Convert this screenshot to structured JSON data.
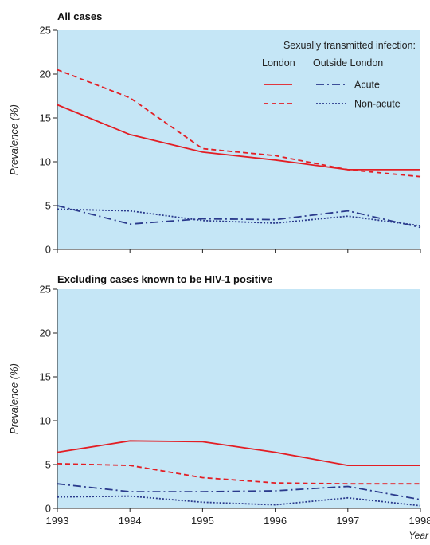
{
  "chart_data": [
    {
      "type": "line",
      "title": "All cases",
      "ylabel": "Prevalence (%)",
      "xlabel": "",
      "x": [
        1993,
        1994,
        1995,
        1996,
        1997,
        1998
      ],
      "ylim": [
        0,
        25
      ],
      "yticks": [
        0,
        5,
        10,
        15,
        20,
        25
      ],
      "grid": false,
      "legend": {
        "title": "Sexually transmitted infection:",
        "col1": "London",
        "col2": "Outside London",
        "rows": [
          "Acute",
          "Non-acute"
        ],
        "placement": "top-right"
      },
      "series": [
        {
          "name": "London acute",
          "color": "#e31e24",
          "dash": "solid",
          "values": [
            16.5,
            13.1,
            11.1,
            10.2,
            9.1,
            9.1
          ]
        },
        {
          "name": "London non-acute",
          "color": "#e31e24",
          "dash": "dashed",
          "values": [
            20.5,
            17.3,
            11.5,
            10.7,
            9.1,
            8.3
          ]
        },
        {
          "name": "Outside London acute",
          "color": "#2a3a8c",
          "dash": "dashdot",
          "values": [
            5.0,
            2.9,
            3.5,
            3.4,
            4.4,
            2.5
          ]
        },
        {
          "name": "Outside London non-acute",
          "color": "#2a3a8c",
          "dash": "dotted",
          "values": [
            4.6,
            4.4,
            3.3,
            3.0,
            3.8,
            2.7
          ]
        }
      ]
    },
    {
      "type": "line",
      "title": "Excluding cases known to be HIV-1 positive",
      "ylabel": "Prevalence (%)",
      "xlabel": "Year",
      "x": [
        1993,
        1994,
        1995,
        1996,
        1997,
        1998
      ],
      "ylim": [
        0,
        25
      ],
      "yticks": [
        0,
        5,
        10,
        15,
        20,
        25
      ],
      "grid": false,
      "series": [
        {
          "name": "London acute",
          "color": "#e31e24",
          "dash": "solid",
          "values": [
            6.4,
            7.7,
            7.6,
            6.4,
            4.9,
            4.9
          ]
        },
        {
          "name": "London non-acute",
          "color": "#e31e24",
          "dash": "dashed",
          "values": [
            5.1,
            4.9,
            3.5,
            2.9,
            2.8,
            2.8
          ]
        },
        {
          "name": "Outside London acute",
          "color": "#2a3a8c",
          "dash": "dashdot",
          "values": [
            2.8,
            1.9,
            1.9,
            2.0,
            2.5,
            1.0
          ]
        },
        {
          "name": "Outside London non-acute",
          "color": "#2a3a8c",
          "dash": "dotted",
          "values": [
            1.3,
            1.4,
            0.7,
            0.4,
            1.2,
            0.3
          ]
        }
      ]
    }
  ],
  "colors": {
    "plot_bg": "#c5e6f6",
    "london": "#e31e24",
    "outside_london": "#2a3a8c"
  }
}
